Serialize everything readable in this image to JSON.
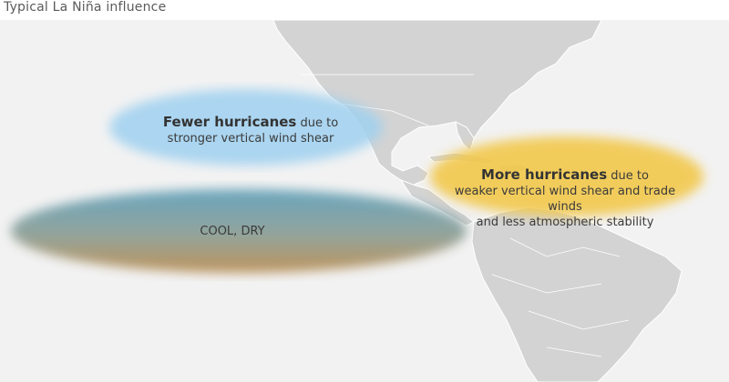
{
  "title": "Typical La Niña influence",
  "regions": {
    "fewer": {
      "strong": "Fewer hurricanes",
      "tail": " due to",
      "line2": "stronger vertical wind shear",
      "color": "#9fd0f0"
    },
    "more": {
      "strong": "More hurricanes",
      "tail": " due to",
      "line2": "weaker vertical wind shear and trade winds",
      "line3": "and less atmospheric stability",
      "color": "#f2c84b"
    },
    "cool": {
      "label": "COOL, DRY",
      "color_top": "#5f9fb8",
      "color_bottom": "#b48a4f"
    }
  },
  "colors": {
    "land": "#d3d3d3",
    "land_border": "#ffffff",
    "ocean": "#f2f2f2"
  }
}
